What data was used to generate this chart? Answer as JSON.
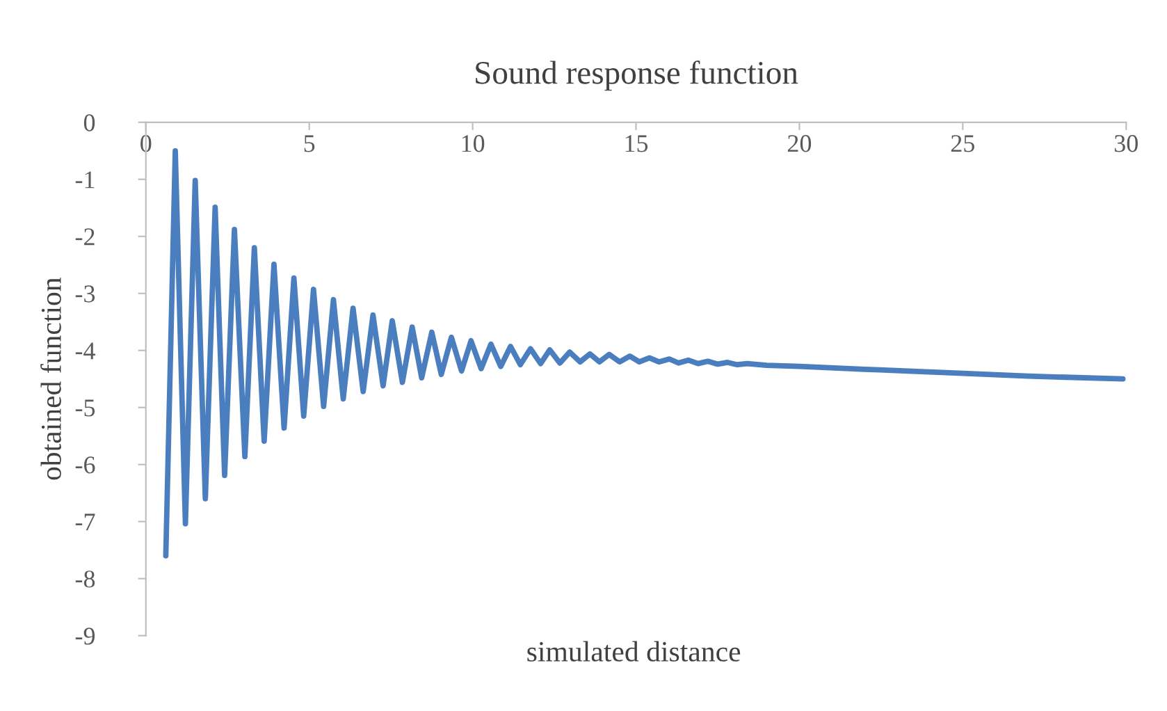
{
  "chart_data": {
    "type": "line",
    "title": "Sound response function",
    "xlabel": "simulated distance",
    "ylabel": "obtained function",
    "xlim": [
      0,
      30
    ],
    "xticks": [
      0,
      5,
      10,
      15,
      20,
      25,
      30
    ],
    "ylim": [
      -9,
      0
    ],
    "yticks": [
      0,
      -1,
      -2,
      -3,
      -4,
      -5,
      -6,
      -7,
      -8,
      -9
    ],
    "grid": false,
    "legend": false,
    "series": [
      {
        "color": "#4a7ebf",
        "x": [
          0.61,
          0.9,
          1.21,
          1.51,
          1.82,
          2.12,
          2.41,
          2.71,
          3.03,
          3.32,
          3.62,
          3.92,
          4.23,
          4.53,
          4.83,
          5.13,
          5.44,
          5.74,
          6.04,
          6.34,
          6.65,
          6.95,
          7.26,
          7.54,
          7.85,
          8.15,
          8.44,
          8.75,
          9.04,
          9.35,
          9.66,
          9.95,
          10.26,
          10.56,
          10.86,
          11.16,
          11.46,
          11.77,
          12.08,
          12.36,
          12.67,
          12.97,
          13.29,
          13.59,
          13.88,
          14.18,
          14.5,
          14.81,
          15.1,
          15.41,
          15.7,
          16.02,
          16.3,
          16.6,
          16.9,
          17.2,
          17.5,
          17.8,
          18.1,
          18.4,
          19,
          20,
          22,
          25,
          27,
          29.9
        ],
        "values": [
          -7.6,
          -0.5,
          -7.04,
          -1.02,
          -6.6,
          -1.49,
          -6.19,
          -1.88,
          -5.86,
          -2.2,
          -5.59,
          -2.49,
          -5.36,
          -2.73,
          -5.15,
          -2.93,
          -4.98,
          -3.11,
          -4.85,
          -3.26,
          -4.72,
          -3.38,
          -4.62,
          -3.48,
          -4.56,
          -3.59,
          -4.48,
          -3.68,
          -4.42,
          -3.77,
          -4.36,
          -3.83,
          -4.32,
          -3.89,
          -4.28,
          -3.93,
          -4.25,
          -3.97,
          -4.23,
          -3.99,
          -4.22,
          -4.03,
          -4.2,
          -4.06,
          -4.2,
          -4.07,
          -4.2,
          -4.1,
          -4.2,
          -4.13,
          -4.2,
          -4.15,
          -4.22,
          -4.17,
          -4.23,
          -4.19,
          -4.24,
          -4.21,
          -4.25,
          -4.23,
          -4.26,
          -4.28,
          -4.33,
          -4.4,
          -4.45,
          -4.5
        ]
      }
    ]
  }
}
